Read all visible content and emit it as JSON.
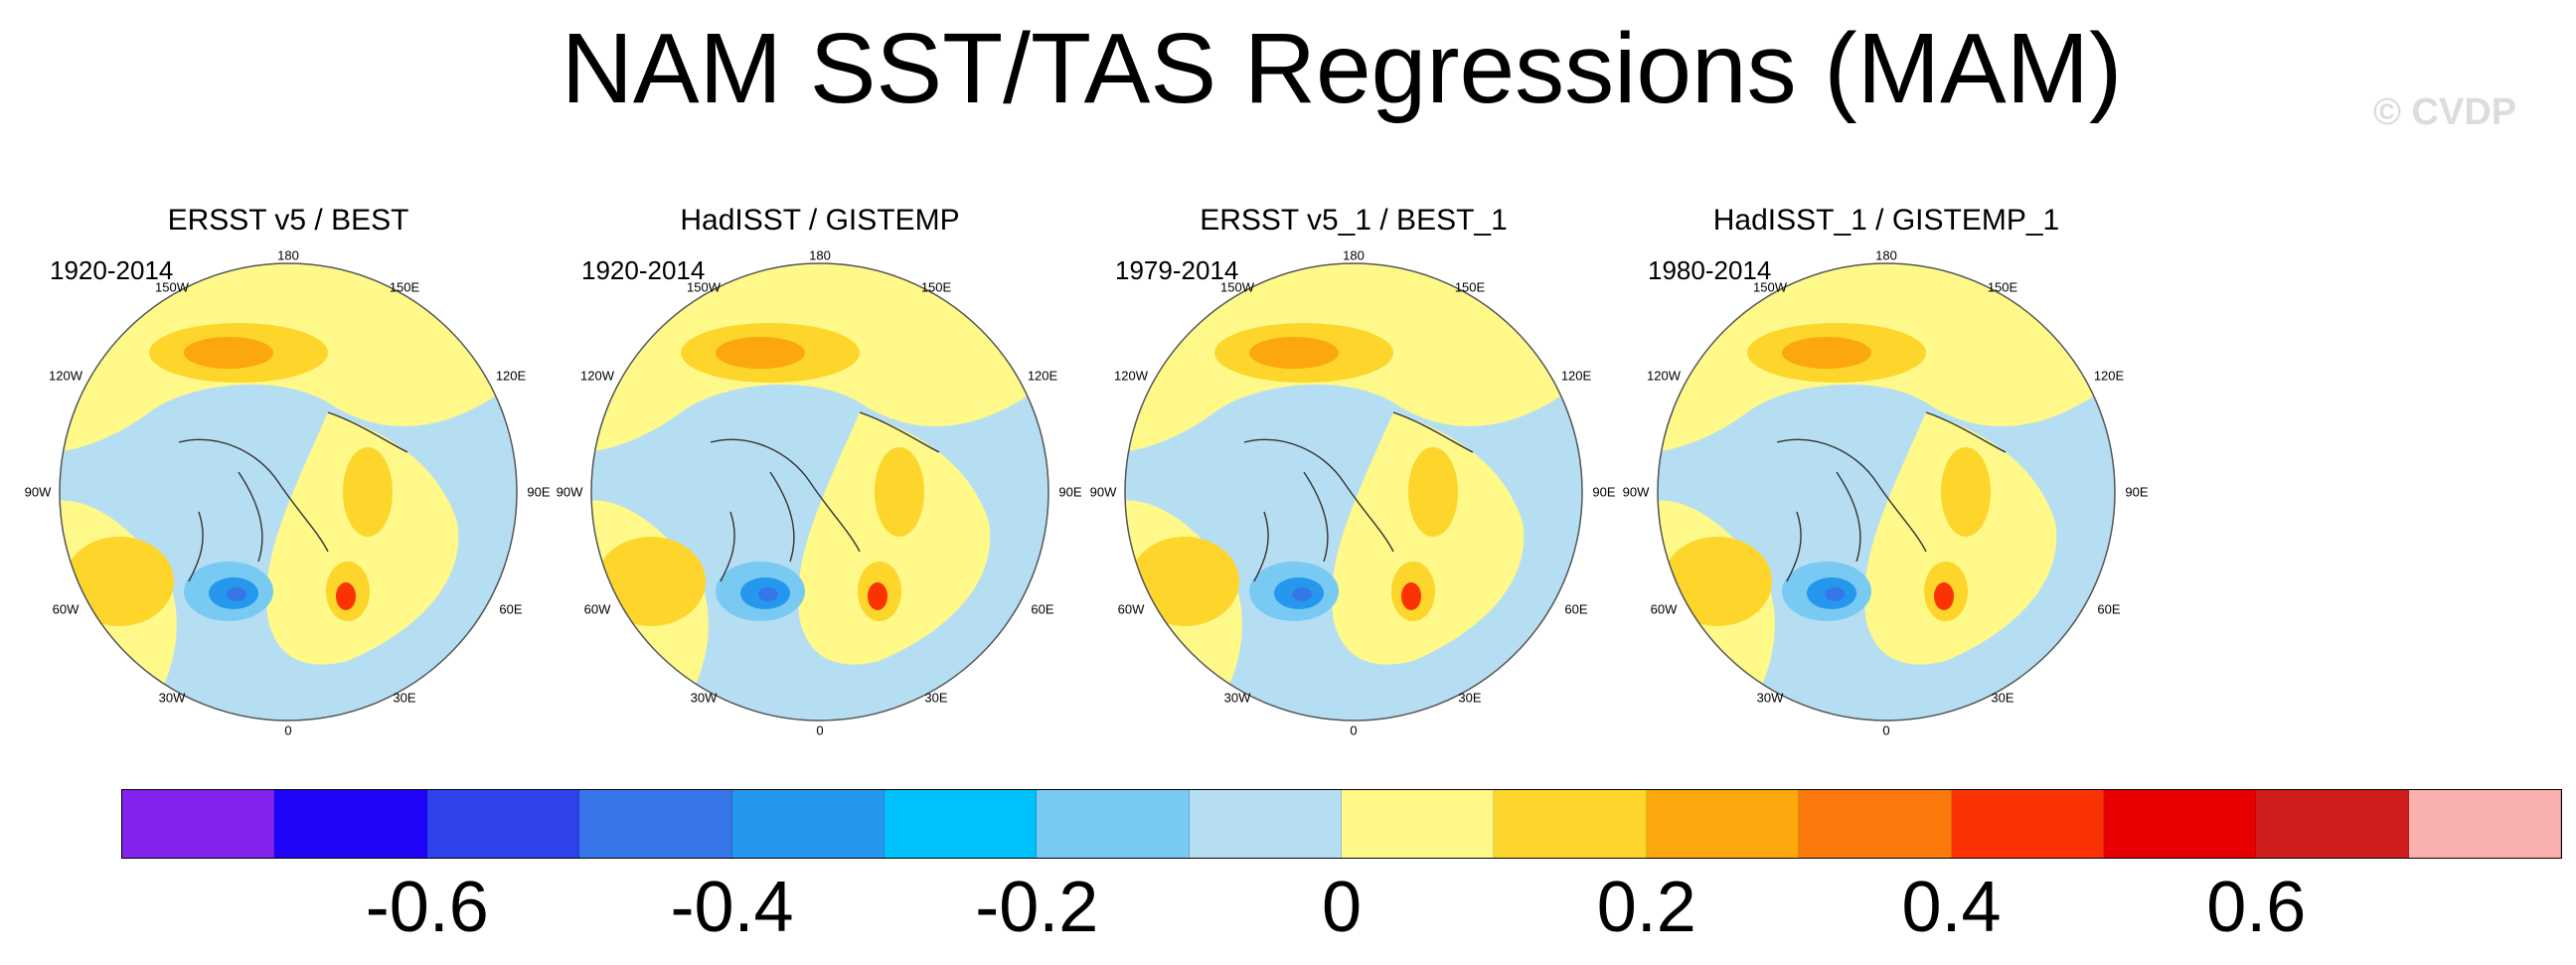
{
  "title": "NAM SST/TAS Regressions (MAM)",
  "watermark": "© CVDP",
  "longitude_labels": {
    "lon_180": "180",
    "lon_150w": "150W",
    "lon_150e": "150E",
    "lon_120w": "120W",
    "lon_120e": "120E",
    "lon_90w": "90W",
    "lon_90e": "90E",
    "lon_60w": "60W",
    "lon_60e": "60E",
    "lon_30w": "30W",
    "lon_30e": "30E",
    "lon_0": "0"
  },
  "panels": [
    {
      "title": "ERSST v5 / BEST",
      "period": "1920-2014"
    },
    {
      "title": "HadISST / GISTEMP",
      "period": "1920-2014"
    },
    {
      "title": "ERSST v5_1 / BEST_1",
      "period": "1979-2014"
    },
    {
      "title": "HadISST_1 / GISTEMP_1",
      "period": "1980-2014"
    }
  ],
  "colorbar": {
    "colors": [
      "#8422ee",
      "#1f05f8",
      "#2f43ed",
      "#3776e8",
      "#2598ee",
      "#00c1fb",
      "#79caf3",
      "#b6def3",
      "#fff98a",
      "#fdd52b",
      "#fca70b",
      "#fc790c",
      "#fb3304",
      "#e80000",
      "#cf1c1c",
      "#fbb0b0"
    ],
    "tick_labels": [
      "-0.6",
      "-0.4",
      "-0.2",
      "0",
      "0.2",
      "0.4",
      "0.6"
    ]
  }
}
